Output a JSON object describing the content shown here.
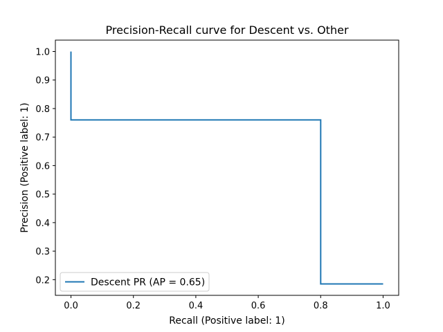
{
  "chart_data": {
    "type": "line",
    "title": "Precision-Recall curve for Descent vs. Other",
    "xlabel": "Recall (Positive label: 1)",
    "ylabel": "Precision (Positive label: 1)",
    "xlim": [
      -0.05,
      1.05
    ],
    "ylim": [
      0.145,
      1.04
    ],
    "xticks": [
      0.0,
      0.2,
      0.4,
      0.6,
      0.8,
      1.0
    ],
    "xtick_labels": [
      "0.0",
      "0.2",
      "0.4",
      "0.6",
      "0.8",
      "1.0"
    ],
    "yticks": [
      0.2,
      0.3,
      0.4,
      0.5,
      0.6,
      0.7,
      0.8,
      0.9,
      1.0
    ],
    "ytick_labels": [
      "0.2",
      "0.3",
      "0.4",
      "0.5",
      "0.6",
      "0.7",
      "0.8",
      "0.9",
      "1.0"
    ],
    "grid": false,
    "legend_position": "lower-left",
    "series": [
      {
        "name": "Descent PR (AP = 0.65)",
        "color": "#1f77b4",
        "step": true,
        "x": [
          0.0,
          0.0,
          0.0,
          0.8,
          0.8,
          1.0
        ],
        "y": [
          1.0,
          0.76,
          0.76,
          0.76,
          0.185,
          0.185
        ]
      }
    ]
  }
}
